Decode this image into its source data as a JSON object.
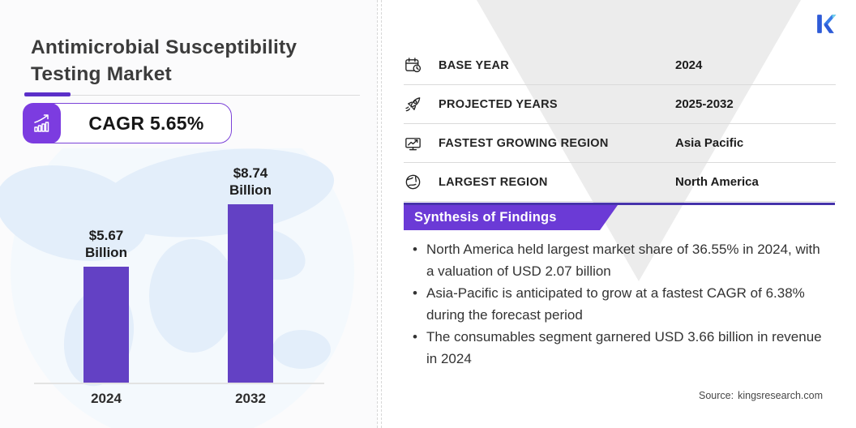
{
  "title": "Antimicrobial Susceptibility Testing Market",
  "brand": {
    "logo_letter": "K"
  },
  "cagr_badge": {
    "label": "CAGR 5.65%",
    "icon": "growth-arrow-icon"
  },
  "chart_data": {
    "type": "bar",
    "categories": [
      "2024",
      "2032"
    ],
    "values": [
      5.67,
      8.74
    ],
    "unit": "USD Billion",
    "bar_labels": [
      "$5.67 Billion",
      "$8.74 Billion"
    ],
    "bar_color": "#6341c4",
    "ylim": [
      0,
      10
    ],
    "grid": false,
    "background": "world-map-watermark"
  },
  "info_table": {
    "rows": [
      {
        "icon": "calendar-clock-icon",
        "label": "BASE YEAR",
        "value": "2024"
      },
      {
        "icon": "rocket-icon",
        "label": "PROJECTED YEARS",
        "value": "2025-2032"
      },
      {
        "icon": "growth-chart-icon",
        "label": "FASTEST GROWING REGION",
        "value": "Asia Pacific"
      },
      {
        "icon": "globe-icon",
        "label": "LARGEST REGION",
        "value": "North America"
      }
    ]
  },
  "findings": {
    "title": "Synthesis of Findings",
    "bullets": [
      "North America held largest market share of 36.55% in 2024, with a valuation of USD 2.07 billion",
      "Asia-Pacific is anticipated to grow at a fastest CAGR of 6.38% during the forecast period",
      "The consumables segment garnered USD 3.66 billion in revenue in 2024"
    ]
  },
  "source": {
    "label": "Source:",
    "value": "kingsresearch.com"
  },
  "colors": {
    "accent_purple": "#6b3ad6",
    "bar_purple": "#6341c4",
    "icon_box_purple": "#7c3ce0",
    "banner_line_indigo": "#4633ab",
    "divider_accent": "#5b2fc9",
    "triangle_gray": "#ececec",
    "map_blue": "#e3eefa",
    "logo_blue": "#2e5bd7",
    "logo_light_blue": "#3a7ce8",
    "logo_cyan": "#6fd3e8"
  }
}
